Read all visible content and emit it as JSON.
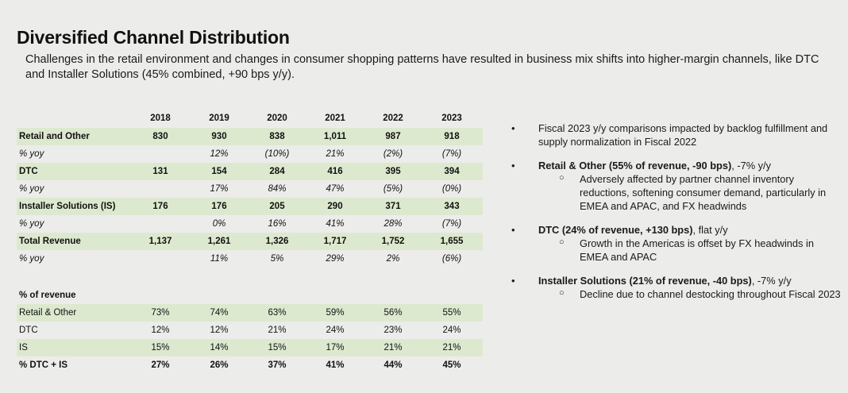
{
  "header": {
    "title": "Diversified Channel Distribution",
    "subtitle": "Challenges in the retail environment and changes in consumer shopping patterns have resulted in business mix shifts into higher-margin channels, like DTC and Installer Solutions (45% combined, +90 bps y/y)."
  },
  "table": {
    "years": [
      "2018",
      "2019",
      "2020",
      "2021",
      "2022",
      "2023"
    ],
    "rows": [
      {
        "label": "Retail and Other",
        "values": [
          "830",
          "930",
          "838",
          "1,011",
          "987",
          "918"
        ]
      },
      {
        "label": "% yoy",
        "values": [
          "",
          "12%",
          "(10%)",
          "21%",
          "(2%)",
          "(7%)"
        ]
      },
      {
        "label": "DTC",
        "values": [
          "131",
          "154",
          "284",
          "416",
          "395",
          "394"
        ]
      },
      {
        "label": "% yoy",
        "values": [
          "",
          "17%",
          "84%",
          "47%",
          "(5%)",
          "(0%)"
        ]
      },
      {
        "label": "Installer Solutions (IS)",
        "values": [
          "176",
          "176",
          "205",
          "290",
          "371",
          "343"
        ]
      },
      {
        "label": "% yoy",
        "values": [
          "",
          "0%",
          "16%",
          "41%",
          "28%",
          "(7%)"
        ]
      },
      {
        "label": "Total Revenue",
        "values": [
          "1,137",
          "1,261",
          "1,326",
          "1,717",
          "1,752",
          "1,655"
        ]
      },
      {
        "label": "% yoy",
        "values": [
          "",
          "11%",
          "5%",
          "29%",
          "2%",
          "(6%)"
        ]
      }
    ],
    "pct_header": "% of revenue",
    "pct_rows": [
      {
        "label": "Retail & Other",
        "values": [
          "73%",
          "74%",
          "63%",
          "59%",
          "56%",
          "55%"
        ]
      },
      {
        "label": "DTC",
        "values": [
          "12%",
          "12%",
          "21%",
          "24%",
          "23%",
          "24%"
        ]
      },
      {
        "label": "IS",
        "values": [
          "15%",
          "14%",
          "15%",
          "17%",
          "21%",
          "21%"
        ]
      },
      {
        "label": "% DTC + IS",
        "values": [
          "27%",
          "26%",
          "37%",
          "41%",
          "44%",
          "45%"
        ]
      }
    ]
  },
  "bullets": [
    {
      "bold": "",
      "text": "Fiscal 2023 y/y comparisons impacted by backlog fulfillment and supply normalization in Fiscal 2022",
      "sub": ""
    },
    {
      "bold": "Retail & Other (55% of revenue, -90 bps)",
      "text": ", -7% y/y",
      "sub": "Adversely affected by partner channel inventory reductions, softening consumer demand, particularly in EMEA and APAC, and FX headwinds"
    },
    {
      "bold": "DTC (24% of revenue, +130 bps)",
      "text": ", flat y/y",
      "sub": "Growth in the Americas is offset by FX headwinds in EMEA and APAC"
    },
    {
      "bold": "Installer Solutions (21% of revenue, -40 bps)",
      "text": ", -7% y/y",
      "sub": "Decline due to channel destocking throughout Fiscal 2023"
    }
  ],
  "icons": {
    "bullet": "•",
    "sub_bullet": "○"
  }
}
